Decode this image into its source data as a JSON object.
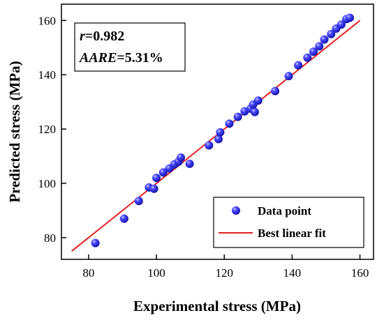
{
  "chart_data": {
    "type": "scatter",
    "title": "",
    "xlabel": "Experimental stress (MPa)",
    "ylabel": "Predicted stress (MPa)",
    "xlim": [
      72,
      164
    ],
    "ylim": [
      72,
      166
    ],
    "xticks": [
      80,
      100,
      120,
      140,
      160
    ],
    "yticks": [
      80,
      100,
      120,
      140,
      160
    ],
    "grid": false,
    "legend_position": "bottom-right",
    "annotation": {
      "r_symbol": "r",
      "r_value": "=0.982",
      "aare_symbol": "AARE",
      "aare_value": "=5.31%"
    },
    "series": [
      {
        "name": "Data point",
        "kind": "scatter",
        "color": "#2a2aee",
        "points": [
          [
            82,
            78
          ],
          [
            90.5,
            87
          ],
          [
            94.8,
            93.5
          ],
          [
            97.8,
            98.5
          ],
          [
            99.3,
            98
          ],
          [
            100,
            102
          ],
          [
            102,
            104
          ],
          [
            103.8,
            105.5
          ],
          [
            105.3,
            107
          ],
          [
            106.5,
            108
          ],
          [
            107.2,
            109.5
          ],
          [
            109.8,
            107.2
          ],
          [
            115.5,
            114
          ],
          [
            118.3,
            116.3
          ],
          [
            118.8,
            118.8
          ],
          [
            121.5,
            122
          ],
          [
            124,
            124.5
          ],
          [
            126,
            126.5
          ],
          [
            127.8,
            127.5
          ],
          [
            129,
            126.3
          ],
          [
            128.5,
            129
          ],
          [
            130,
            130.5
          ],
          [
            135,
            134
          ],
          [
            139,
            139.5
          ],
          [
            141.8,
            143.5
          ],
          [
            144.5,
            146.3
          ],
          [
            146.3,
            148.5
          ],
          [
            148,
            150.5
          ],
          [
            149.5,
            153
          ],
          [
            151.5,
            155
          ],
          [
            153,
            157
          ],
          [
            154.5,
            158.5
          ],
          [
            156,
            160.5
          ],
          [
            157,
            161
          ]
        ]
      },
      {
        "name": "Best linear fit",
        "kind": "line",
        "color": "#e02020",
        "x": [
          75,
          160
        ],
        "y": [
          75,
          160
        ]
      }
    ]
  }
}
